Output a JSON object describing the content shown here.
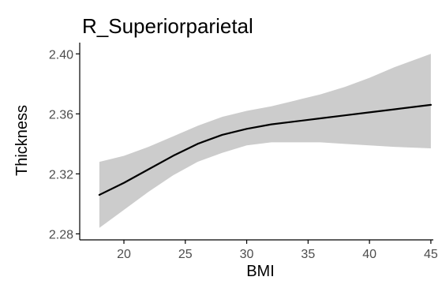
{
  "chart_data": {
    "type": "line",
    "title": "R_Superiorparietal",
    "xlabel": "BMI",
    "ylabel": "Thickness",
    "xlim": [
      16.4,
      45.2
    ],
    "ylim": [
      2.276,
      2.4075
    ],
    "x_ticks": [
      20,
      25,
      30,
      35,
      40,
      45
    ],
    "y_ticks": [
      2.28,
      2.32,
      2.36,
      2.4
    ],
    "x_tick_labels": [
      "20",
      "25",
      "30",
      "35",
      "40",
      "45"
    ],
    "y_tick_labels": [
      "2.28",
      "2.32",
      "2.36",
      "2.40"
    ],
    "grid": false,
    "legend": "none",
    "series": [
      {
        "x": [
          18,
          20,
          22,
          24,
          26,
          28,
          30,
          32,
          34,
          36,
          38,
          40,
          42,
          45
        ],
        "y": [
          2.306,
          2.314,
          2.323,
          2.332,
          2.34,
          2.346,
          2.35,
          2.353,
          2.355,
          2.357,
          2.359,
          2.361,
          2.363,
          2.366
        ],
        "lower": [
          2.284,
          2.296,
          2.308,
          2.319,
          2.328,
          2.334,
          2.339,
          2.341,
          2.341,
          2.341,
          2.34,
          2.339,
          2.338,
          2.337
        ],
        "upper": [
          2.328,
          2.332,
          2.338,
          2.345,
          2.352,
          2.358,
          2.362,
          2.365,
          2.369,
          2.373,
          2.378,
          2.384,
          2.391,
          2.4
        ]
      }
    ],
    "colors": {
      "line": "#000000",
      "ribbon": "#cccccc",
      "axis": "#000000",
      "tick_label": "#4d4d4d"
    }
  }
}
